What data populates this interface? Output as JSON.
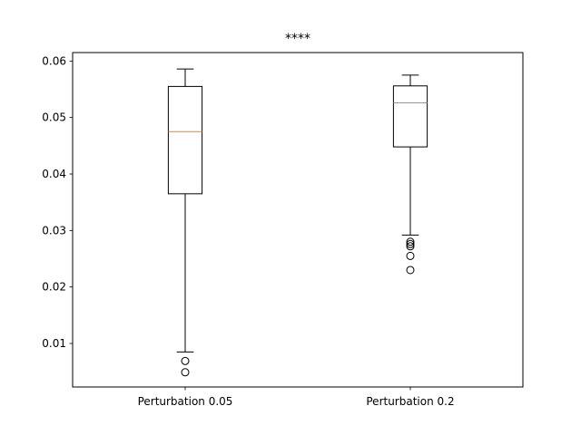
{
  "chart_data": {
    "type": "box",
    "title": "****",
    "xlabel": "",
    "ylabel": "",
    "ylim": [
      0.0023,
      0.0615
    ],
    "yticks": [
      0.01,
      0.02,
      0.03,
      0.04,
      0.05,
      0.06
    ],
    "ytick_labels": [
      "0.01",
      "0.02",
      "0.03",
      "0.04",
      "0.05",
      "0.06"
    ],
    "categories": [
      "Perturbation 0.05",
      "Perturbation 0.2"
    ],
    "boxes": [
      {
        "label": "Perturbation 0.05",
        "whisker_low": 0.0085,
        "q1": 0.0365,
        "median": 0.0475,
        "q3": 0.0555,
        "whisker_high": 0.0586,
        "outliers": [
          0.0069,
          0.0049
        ]
      },
      {
        "label": "Perturbation 0.2",
        "whisker_low": 0.0292,
        "q1": 0.0448,
        "median": 0.0526,
        "q3": 0.0556,
        "whisker_high": 0.0575,
        "outliers": [
          0.028,
          0.0276,
          0.0272,
          0.0255,
          0.023
        ]
      }
    ],
    "grid": false,
    "colors": {
      "box": "#000000",
      "median": "#ff7f0e",
      "outlier_edge": "#000000"
    }
  }
}
